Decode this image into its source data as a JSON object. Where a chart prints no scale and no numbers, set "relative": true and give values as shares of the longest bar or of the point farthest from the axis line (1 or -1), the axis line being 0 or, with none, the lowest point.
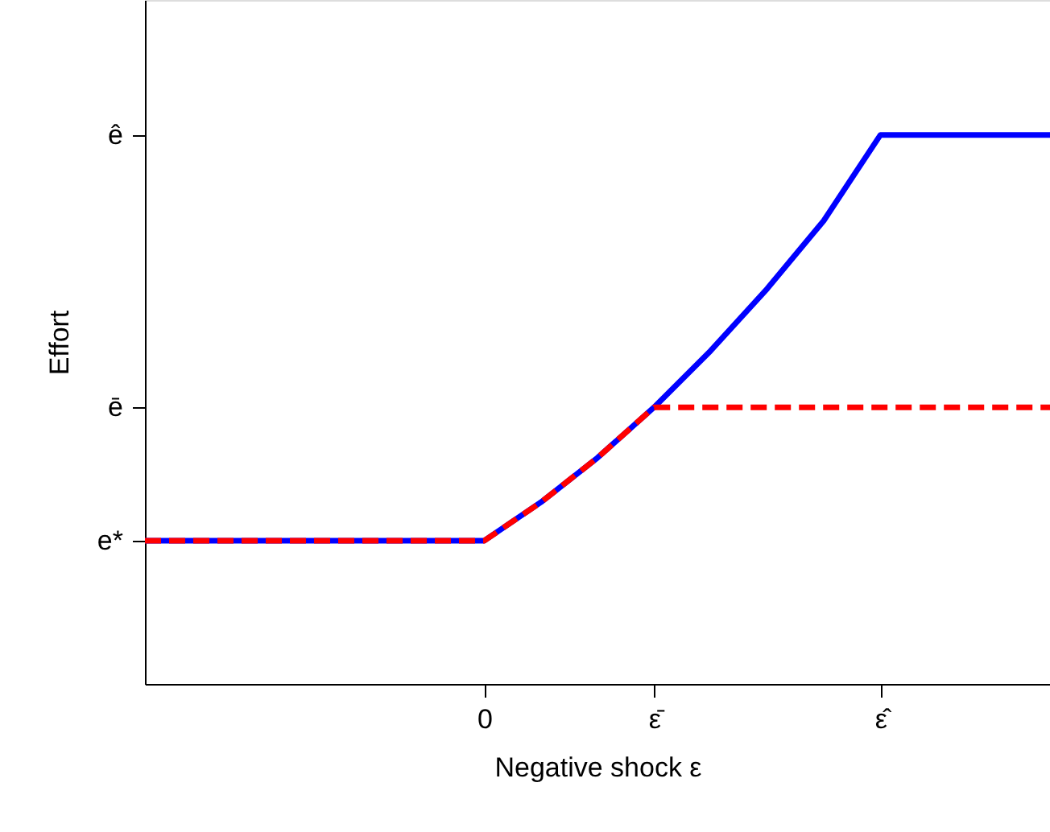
{
  "chart_data": {
    "type": "line",
    "relative": true,
    "xlabel": "Negative shock ε",
    "ylabel": "Effort",
    "categories": [
      null,
      null,
      null,
      null,
      null,
      null,
      "0",
      null,
      null,
      "ε̄",
      null,
      null,
      null,
      "ε̂",
      null,
      null,
      null
    ],
    "annotations": [
      "e*",
      "ē",
      "ê"
    ],
    "series": [
      {
        "color": "#0000ff",
        "line_style": "solid",
        "values": [
          0.261,
          0.261,
          0.261,
          0.261,
          0.261,
          0.261,
          0.261,
          0.331,
          0.412,
          0.504,
          0.607,
          0.72,
          0.844,
          1,
          1,
          1,
          1
        ]
      },
      {
        "color": "#ff0000",
        "line_style": "dashed",
        "values": [
          0.261,
          0.261,
          0.261,
          0.261,
          0.261,
          0.261,
          0.261,
          0.331,
          0.412,
          0.504,
          0.504,
          0.504,
          0.504,
          0.504,
          0.504,
          0.504,
          0.504
        ]
      }
    ]
  }
}
